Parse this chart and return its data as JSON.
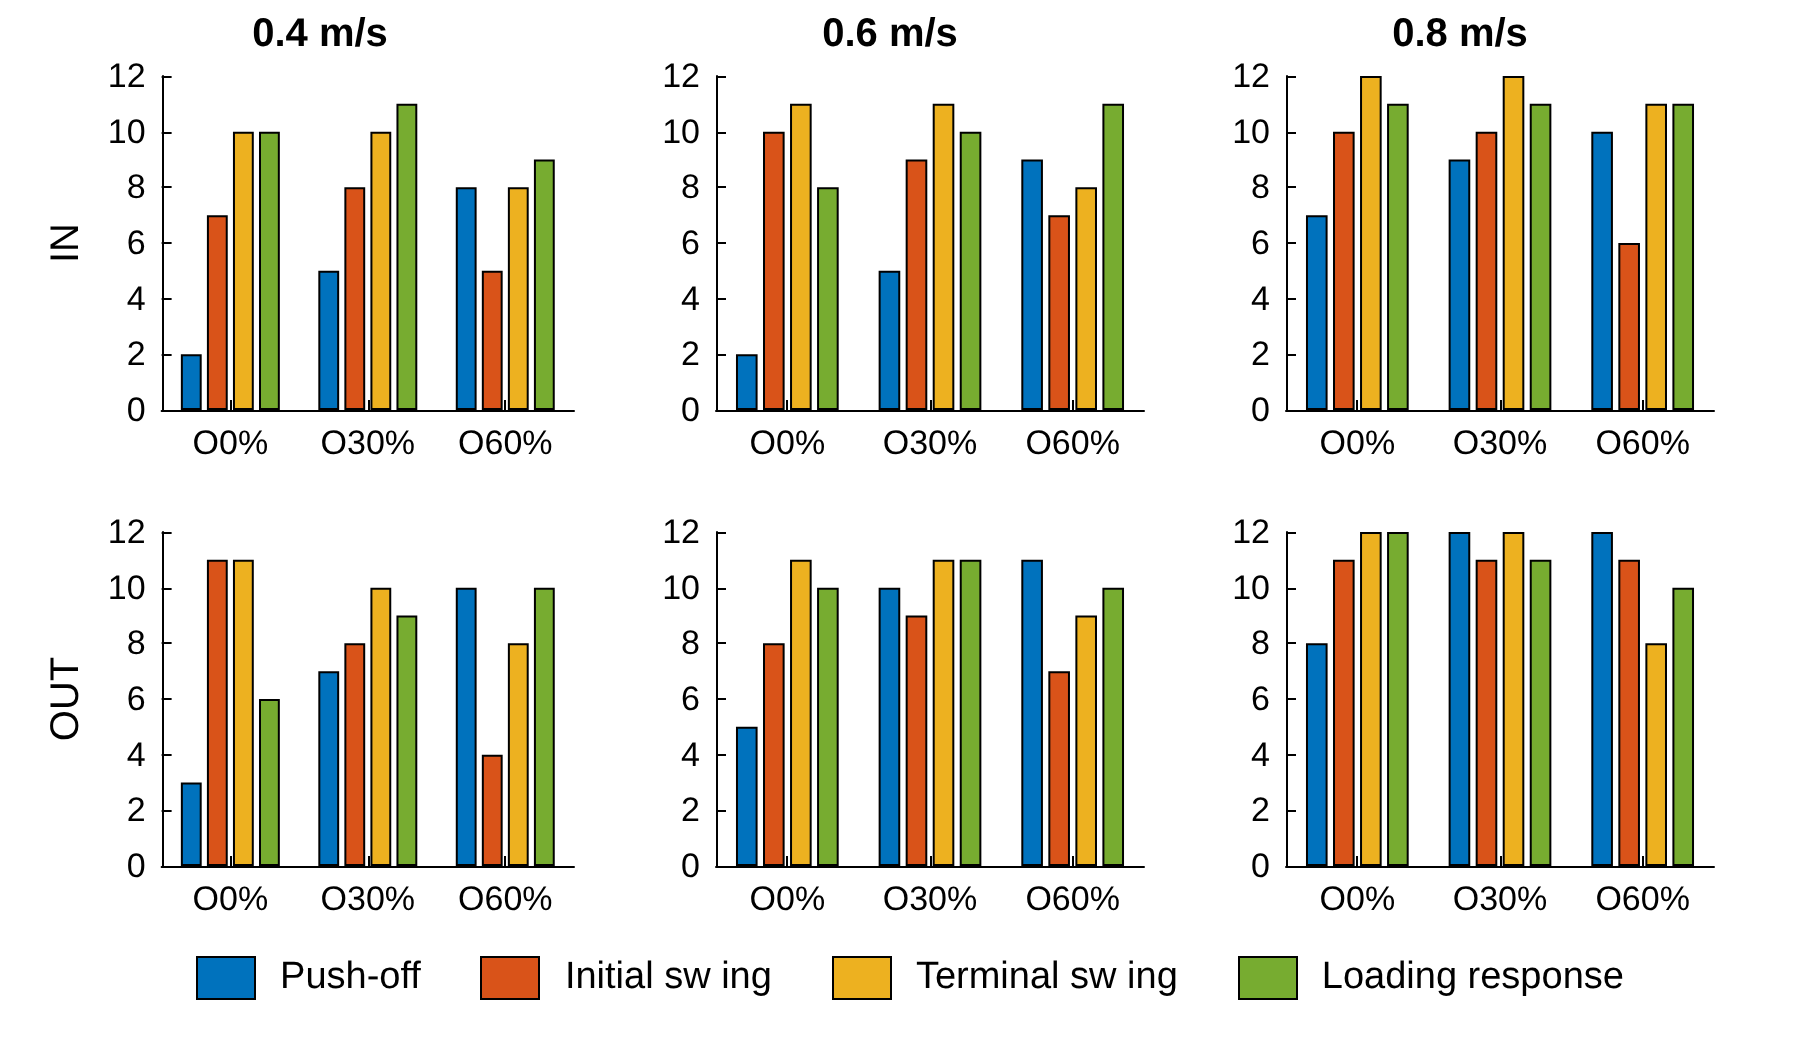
{
  "chart_data": [
    {
      "type": "bar",
      "title": "0.4 m/s",
      "ylabel": "IN",
      "categories": [
        "O0%",
        "O30%",
        "O60%"
      ],
      "ylim": [
        0,
        12
      ],
      "yticks": [
        0,
        2,
        4,
        6,
        8,
        10,
        12
      ],
      "grid": false,
      "series": [
        {
          "color": "#0072bd",
          "values": [
            2,
            5,
            8
          ]
        },
        {
          "color": "#d95319",
          "values": [
            7,
            8,
            5
          ]
        },
        {
          "color": "#edb120",
          "values": [
            10,
            10,
            8
          ]
        },
        {
          "color": "#77ac30",
          "values": [
            10,
            11,
            9
          ]
        }
      ]
    },
    {
      "type": "bar",
      "title": "0.6 m/s",
      "categories": [
        "O0%",
        "O30%",
        "O60%"
      ],
      "ylim": [
        0,
        12
      ],
      "yticks": [
        0,
        2,
        4,
        6,
        8,
        10,
        12
      ],
      "grid": false,
      "series": [
        {
          "color": "#0072bd",
          "values": [
            2,
            5,
            9
          ]
        },
        {
          "color": "#d95319",
          "values": [
            10,
            9,
            7
          ]
        },
        {
          "color": "#edb120",
          "values": [
            11,
            11,
            8
          ]
        },
        {
          "color": "#77ac30",
          "values": [
            8,
            10,
            11
          ]
        }
      ]
    },
    {
      "type": "bar",
      "title": "0.8 m/s",
      "categories": [
        "O0%",
        "O30%",
        "O60%"
      ],
      "ylim": [
        0,
        12
      ],
      "yticks": [
        0,
        2,
        4,
        6,
        8,
        10,
        12
      ],
      "grid": false,
      "series": [
        {
          "color": "#0072bd",
          "values": [
            7,
            9,
            10
          ]
        },
        {
          "color": "#d95319",
          "values": [
            10,
            10,
            6
          ]
        },
        {
          "color": "#edb120",
          "values": [
            12,
            12,
            11
          ]
        },
        {
          "color": "#77ac30",
          "values": [
            11,
            11,
            11
          ]
        }
      ]
    },
    {
      "type": "bar",
      "ylabel": "OUT",
      "categories": [
        "O0%",
        "O30%",
        "O60%"
      ],
      "ylim": [
        0,
        12
      ],
      "yticks": [
        0,
        2,
        4,
        6,
        8,
        10,
        12
      ],
      "grid": false,
      "series": [
        {
          "color": "#0072bd",
          "values": [
            3,
            7,
            10
          ]
        },
        {
          "color": "#d95319",
          "values": [
            11,
            8,
            4
          ]
        },
        {
          "color": "#edb120",
          "values": [
            11,
            10,
            8
          ]
        },
        {
          "color": "#77ac30",
          "values": [
            6,
            9,
            10
          ]
        }
      ]
    },
    {
      "type": "bar",
      "categories": [
        "O0%",
        "O30%",
        "O60%"
      ],
      "ylim": [
        0,
        12
      ],
      "yticks": [
        0,
        2,
        4,
        6,
        8,
        10,
        12
      ],
      "grid": false,
      "legend": "bottom",
      "series": [
        {
          "name": "Push-off",
          "color": "#0072bd",
          "values": [
            5,
            10,
            11
          ]
        },
        {
          "name": "Initial sw ing",
          "color": "#d95319",
          "values": [
            8,
            9,
            7
          ]
        },
        {
          "name": "Terminal sw ing",
          "color": "#edb120",
          "values": [
            11,
            11,
            9
          ]
        },
        {
          "name": "Loading response",
          "color": "#77ac30",
          "values": [
            10,
            11,
            10
          ]
        }
      ]
    },
    {
      "type": "bar",
      "categories": [
        "O0%",
        "O30%",
        "O60%"
      ],
      "ylim": [
        0,
        12
      ],
      "yticks": [
        0,
        2,
        4,
        6,
        8,
        10,
        12
      ],
      "grid": false,
      "series": [
        {
          "color": "#0072bd",
          "values": [
            8,
            12,
            12
          ]
        },
        {
          "color": "#d95319",
          "values": [
            11,
            11,
            11
          ]
        },
        {
          "color": "#edb120",
          "values": [
            12,
            12,
            8
          ]
        },
        {
          "color": "#77ac30",
          "values": [
            12,
            11,
            10
          ]
        }
      ]
    }
  ]
}
